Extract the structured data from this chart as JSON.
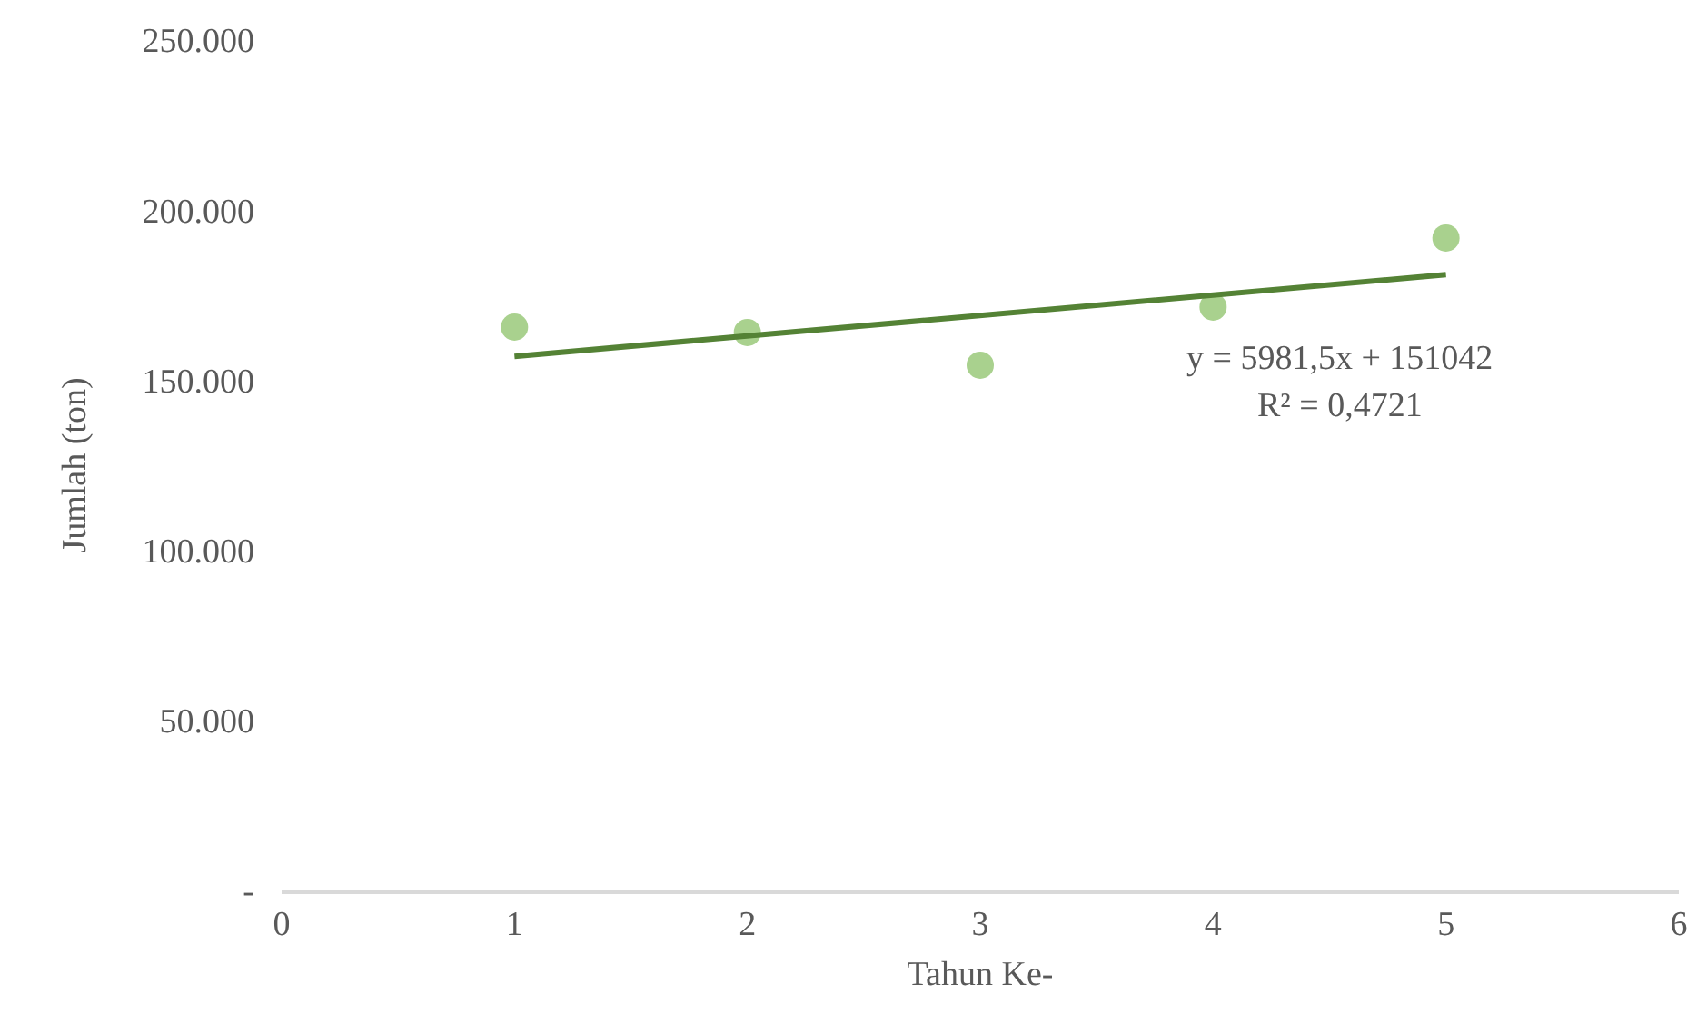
{
  "chart_data": {
    "type": "scatter",
    "xlabel": "Tahun Ke-",
    "ylabel": "Jumlah (ton)",
    "xlim": [
      0,
      6
    ],
    "xticks": [
      0,
      1,
      2,
      3,
      4,
      5,
      6
    ],
    "ylim": [
      0,
      250000
    ],
    "yticks": [
      {
        "value": 0,
        "label": "-"
      },
      {
        "value": 50000,
        "label": "50.000"
      },
      {
        "value": 100000,
        "label": "100.000"
      },
      {
        "value": 150000,
        "label": "150.000"
      },
      {
        "value": 200000,
        "label": "200.000"
      },
      {
        "value": 250000,
        "label": "250.000"
      }
    ],
    "grid": false,
    "marker": "circle",
    "series": [
      {
        "color": "#a9d18e",
        "x": [
          1,
          2,
          3,
          4,
          5
        ],
        "values": [
          165600,
          164000,
          154400,
          171500,
          191800
        ]
      },
      {
        "type": "line",
        "color": "#548235",
        "line_style": "solid",
        "marker": "none",
        "x": [
          1,
          5
        ],
        "values": [
          157000,
          181000
        ]
      }
    ],
    "annotations": [
      "y = 5981,5x + 151042",
      "R² = 0,4721"
    ]
  }
}
